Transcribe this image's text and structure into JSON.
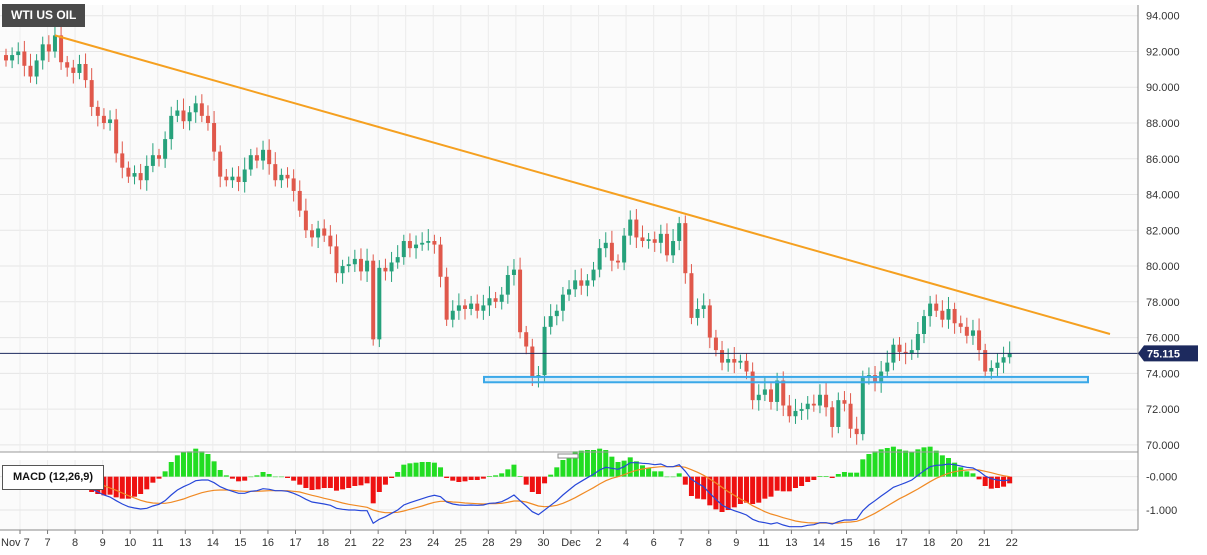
{
  "title": "WTI US OIL",
  "indicator_label": "MACD (12,26,9)",
  "current_price_label": "75.115",
  "colors": {
    "up": "#26a17b",
    "down": "#e0584b",
    "trendline": "#f5a020",
    "support_zone": "#3aa8e8",
    "price_line": "#1d2a5e",
    "macd_line": "#2747d9",
    "signal_line": "#f08a24",
    "hist_pos": "#22dd22",
    "hist_neg": "#ee1111"
  },
  "chart_data": [
    {
      "type": "candlestick",
      "title": "WTI US OIL",
      "y_ticks": [
        "70.000",
        "72.000",
        "74.000",
        "76.000",
        "78.000",
        "80.000",
        "82.000",
        "84.000",
        "86.000",
        "88.000",
        "90.000",
        "92.000",
        "94.000"
      ],
      "ylim": [
        69.6,
        94.6
      ],
      "x_ticks": [
        "Nov 7",
        "7",
        "8",
        "9",
        "10",
        "11",
        "13",
        "14",
        "15",
        "16",
        "17",
        "18",
        "21",
        "22",
        "23",
        "24",
        "25",
        "28",
        "29",
        "30",
        "Dec",
        "2",
        "4",
        "6",
        "7",
        "8",
        "9",
        "11",
        "13",
        "14",
        "15",
        "16",
        "17",
        "18",
        "20",
        "21",
        "22"
      ],
      "current_price": 75.115,
      "support_zone": [
        73.5,
        73.8
      ],
      "trendline": {
        "from_close": 92.9,
        "to_value": 76.2
      },
      "grid": true,
      "closes": [
        91.5,
        91.8,
        92.0,
        91.2,
        90.6,
        91.5,
        92.4,
        92.0,
        92.9,
        91.4,
        91.1,
        90.8,
        91.3,
        90.4,
        88.9,
        88.4,
        88.0,
        88.2,
        86.3,
        85.5,
        85.0,
        85.2,
        84.8,
        85.6,
        86.2,
        86.0,
        87.1,
        88.4,
        88.7,
        88.1,
        88.6,
        89.1,
        88.4,
        88.0,
        86.4,
        85.0,
        84.8,
        85.0,
        84.7,
        85.4,
        86.2,
        85.9,
        86.5,
        85.7,
        84.8,
        85.1,
        84.9,
        84.2,
        83.1,
        82.0,
        81.6,
        82.1,
        81.7,
        81.1,
        79.6,
        80.0,
        80.1,
        80.4,
        79.7,
        80.3,
        75.9,
        79.9,
        79.7,
        80.2,
        80.5,
        81.4,
        81.0,
        81.2,
        81.3,
        81.4,
        81.2,
        79.4,
        77.0,
        77.5,
        77.8,
        77.6,
        77.9,
        77.5,
        77.8,
        78.2,
        78.0,
        78.4,
        79.5,
        79.8,
        76.3,
        75.5,
        73.8,
        73.9,
        76.6,
        77.2,
        77.5,
        78.4,
        78.7,
        79.2,
        78.9,
        79.2,
        79.8,
        81.0,
        81.3,
        80.3,
        80.2,
        81.7,
        82.6,
        81.6,
        81.4,
        81.5,
        81.3,
        81.8,
        80.6,
        81.4,
        82.4,
        79.6,
        77.1,
        77.6,
        77.8,
        76.0,
        75.3,
        74.6,
        74.8,
        74.6,
        74.7,
        74.1,
        72.5,
        72.8,
        73.1,
        72.4,
        73.6,
        72.2,
        71.6,
        71.9,
        72.0,
        72.3,
        72.2,
        72.8,
        72.1,
        71.0,
        72.5,
        72.3,
        70.9,
        70.6,
        73.8,
        73.9,
        73.5,
        74.1,
        74.6,
        75.6,
        75.2,
        75.1,
        75.3,
        76.2,
        77.2,
        77.9,
        77.5,
        77.0,
        77.6,
        76.8,
        76.6,
        76.1,
        76.4,
        75.3,
        74.1,
        74.3,
        74.6,
        74.9,
        75.115
      ],
      "macd": [
        0.14,
        0.16,
        0.18,
        0.14,
        0.08,
        0.06,
        0.09,
        0.07,
        0.11,
        0.03,
        -0.05,
        -0.12,
        -0.16,
        -0.24,
        -0.36,
        -0.46,
        -0.55,
        -0.61,
        -0.72,
        -0.82,
        -0.9,
        -0.94,
        -0.97,
        -0.95,
        -0.88,
        -0.83,
        -0.72,
        -0.55,
        -0.4,
        -0.3,
        -0.22,
        -0.12,
        -0.1,
        -0.1,
        -0.18,
        -0.3,
        -0.38,
        -0.44,
        -0.5,
        -0.5,
        -0.44,
        -0.42,
        -0.36,
        -0.38,
        -0.42,
        -0.42,
        -0.44,
        -0.5,
        -0.58,
        -0.68,
        -0.76,
        -0.79,
        -0.82,
        -0.86,
        -0.95,
        -0.98,
        -1.0,
        -1.0,
        -1.02,
        -1.02,
        -1.4,
        -1.28,
        -1.2,
        -1.1,
        -1.0,
        -0.85,
        -0.78,
        -0.72,
        -0.66,
        -0.6,
        -0.56,
        -0.6,
        -0.76,
        -0.82,
        -0.85,
        -0.86,
        -0.85,
        -0.86,
        -0.85,
        -0.8,
        -0.79,
        -0.75,
        -0.66,
        -0.55,
        -0.72,
        -0.88,
        -1.05,
        -1.14,
        -1.0,
        -0.86,
        -0.72,
        -0.55,
        -0.4,
        -0.25,
        -0.14,
        -0.03,
        0.07,
        0.2,
        0.28,
        0.25,
        0.22,
        0.3,
        0.42,
        0.42,
        0.4,
        0.39,
        0.36,
        0.38,
        0.3,
        0.3,
        0.36,
        0.16,
        -0.08,
        -0.2,
        -0.3,
        -0.5,
        -0.68,
        -0.85,
        -0.95,
        -1.02,
        -1.08,
        -1.15,
        -1.28,
        -1.35,
        -1.38,
        -1.42,
        -1.38,
        -1.45,
        -1.5,
        -1.5,
        -1.5,
        -1.46,
        -1.44,
        -1.38,
        -1.38,
        -1.42,
        -1.35,
        -1.3,
        -1.3,
        -1.28,
        -1.02,
        -0.85,
        -0.72,
        -0.58,
        -0.45,
        -0.32,
        -0.25,
        -0.18,
        -0.1,
        0.04,
        0.18,
        0.3,
        0.34,
        0.35,
        0.38,
        0.36,
        0.32,
        0.28,
        0.26,
        0.16,
        0.02,
        -0.06,
        -0.1,
        -0.12,
        -0.1
      ],
      "signal": [
        0.16,
        0.16,
        0.16,
        0.16,
        0.15,
        0.13,
        0.12,
        0.11,
        0.1,
        0.09,
        0.06,
        0.02,
        -0.02,
        -0.07,
        -0.13,
        -0.2,
        -0.27,
        -0.34,
        -0.41,
        -0.49,
        -0.57,
        -0.64,
        -0.71,
        -0.76,
        -0.79,
        -0.8,
        -0.8,
        -0.77,
        -0.72,
        -0.67,
        -0.6,
        -0.54,
        -0.48,
        -0.44,
        -0.41,
        -0.4,
        -0.4,
        -0.41,
        -0.43,
        -0.44,
        -0.44,
        -0.44,
        -0.43,
        -0.42,
        -0.42,
        -0.42,
        -0.42,
        -0.44,
        -0.46,
        -0.51,
        -0.56,
        -0.6,
        -0.65,
        -0.69,
        -0.74,
        -0.79,
        -0.83,
        -0.86,
        -0.89,
        -0.92,
        -1.0,
        -1.05,
        -1.08,
        -1.08,
        -1.07,
        -1.03,
        -0.98,
        -0.93,
        -0.88,
        -0.82,
        -0.77,
        -0.74,
        -0.74,
        -0.76,
        -0.77,
        -0.79,
        -0.8,
        -0.81,
        -0.82,
        -0.81,
        -0.81,
        -0.8,
        -0.77,
        -0.73,
        -0.73,
        -0.76,
        -0.82,
        -0.88,
        -0.9,
        -0.89,
        -0.86,
        -0.8,
        -0.72,
        -0.63,
        -0.53,
        -0.43,
        -0.33,
        -0.22,
        -0.12,
        -0.05,
        0.0,
        0.06,
        0.13,
        0.19,
        0.23,
        0.26,
        0.28,
        0.3,
        0.3,
        0.3,
        0.31,
        0.28,
        0.21,
        0.13,
        0.04,
        -0.07,
        -0.19,
        -0.32,
        -0.45,
        -0.56,
        -0.67,
        -0.76,
        -0.87,
        -0.96,
        -1.05,
        -1.12,
        -1.17,
        -1.23,
        -1.28,
        -1.33,
        -1.36,
        -1.38,
        -1.39,
        -1.39,
        -1.39,
        -1.4,
        -1.39,
        -1.37,
        -1.36,
        -1.34,
        -1.28,
        -1.19,
        -1.1,
        -0.99,
        -0.88,
        -0.77,
        -0.66,
        -0.57,
        -0.47,
        -0.37,
        -0.26,
        -0.15,
        -0.05,
        0.03,
        0.1,
        0.15,
        0.18,
        0.2,
        0.21,
        0.2,
        0.16,
        0.12,
        0.07,
        0.03,
        0.0
      ]
    }
  ]
}
